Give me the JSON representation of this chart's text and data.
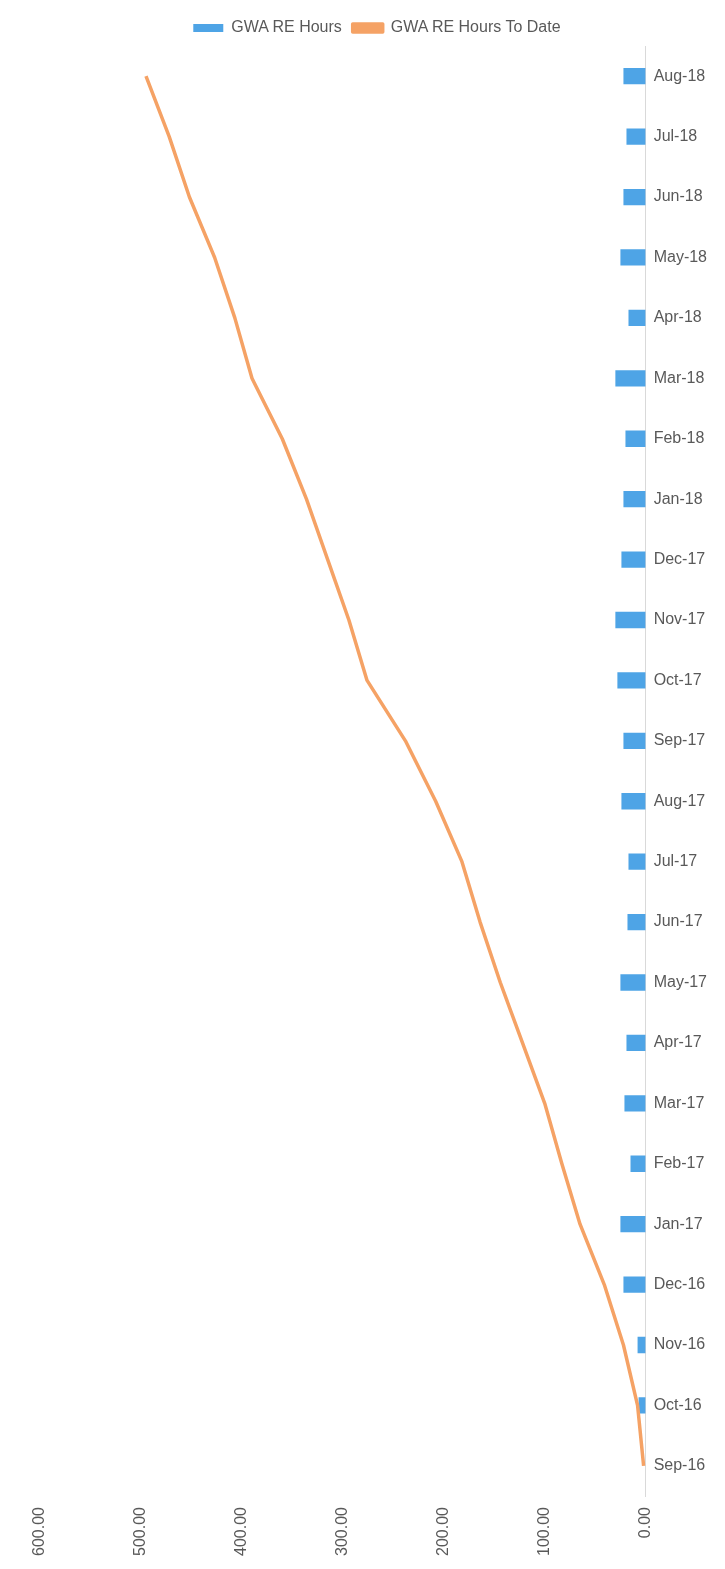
{
  "chart_data": {
    "type": "bar",
    "orientation": "horizontal",
    "categories": [
      "Aug-18",
      "Jul-18",
      "Jun-18",
      "May-18",
      "Apr-18",
      "Mar-18",
      "Feb-18",
      "Jan-18",
      "Dec-17",
      "Nov-17",
      "Oct-17",
      "Sep-17",
      "Aug-17",
      "Jul-17",
      "Jun-17",
      "May-17",
      "Apr-17",
      "Mar-17",
      "Feb-17",
      "Jan-17",
      "Dec-16",
      "Nov-16",
      "Oct-16",
      "Sep-16"
    ],
    "series": [
      {
        "name": "GWA RE Hours",
        "color": "#4ea4e6",
        "values": [
          22,
          19,
          22,
          25,
          17,
          30,
          20,
          22,
          24,
          30,
          28,
          22,
          24,
          17,
          18,
          25,
          19,
          21,
          15,
          25,
          22,
          8,
          7,
          0
        ]
      },
      {
        "name": "GWA RE Hours To Date",
        "type": "line",
        "color": "#f5a265",
        "values": [
          495,
          472,
          452,
          427,
          407,
          390,
          360,
          336,
          315,
          294,
          276,
          238,
          208,
          182,
          164,
          144,
          122,
          100,
          83,
          65,
          41,
          22,
          8,
          2
        ]
      }
    ],
    "xlim": [
      600,
      0
    ],
    "xticks": [
      {
        "value": 600,
        "label": "600.00"
      },
      {
        "value": 500,
        "label": "500.00"
      },
      {
        "value": 400,
        "label": "400.00"
      },
      {
        "value": 300,
        "label": "300.00"
      },
      {
        "value": 200,
        "label": "200.00"
      },
      {
        "value": 100,
        "label": "100.00"
      },
      {
        "value": 0,
        "label": "0.00"
      }
    ],
    "grid": false,
    "legend": "top",
    "marker": "none"
  }
}
